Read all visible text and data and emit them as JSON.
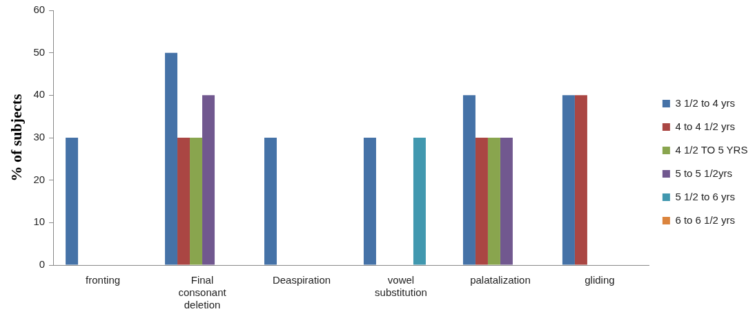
{
  "chart_data": {
    "type": "bar",
    "ylabel": "% of subjects",
    "categories": [
      "fronting",
      "Final consonant deletion",
      "Deaspiration",
      "vowel substitution",
      "palatalization",
      "gliding"
    ],
    "series": [
      {
        "name": "3 1/2 to 4 yrs",
        "color": "#4572a7",
        "values": [
          30,
          50,
          30,
          30,
          40,
          40
        ]
      },
      {
        "name": "4 to 4 1/2 yrs",
        "color": "#aa4643",
        "values": [
          0,
          30,
          0,
          0,
          30,
          40
        ]
      },
      {
        "name": "4 1/2 TO 5 YRS",
        "color": "#89a54e",
        "values": [
          0,
          30,
          0,
          0,
          30,
          0
        ]
      },
      {
        "name": "5 to 5 1/2yrs",
        "color": "#71588f",
        "values": [
          0,
          40,
          0,
          0,
          30,
          0
        ]
      },
      {
        "name": "5 1/2 to 6 yrs",
        "color": "#4198af",
        "values": [
          0,
          0,
          0,
          30,
          0,
          0
        ]
      },
      {
        "name": "6 to 6 1/2 yrs",
        "color": "#db843d",
        "values": [
          0,
          0,
          0,
          0,
          0,
          0
        ]
      }
    ],
    "ylim": [
      0,
      60
    ],
    "yticks": [
      0,
      10,
      20,
      30,
      40,
      50,
      60
    ],
    "grid": false,
    "legend": "right"
  }
}
